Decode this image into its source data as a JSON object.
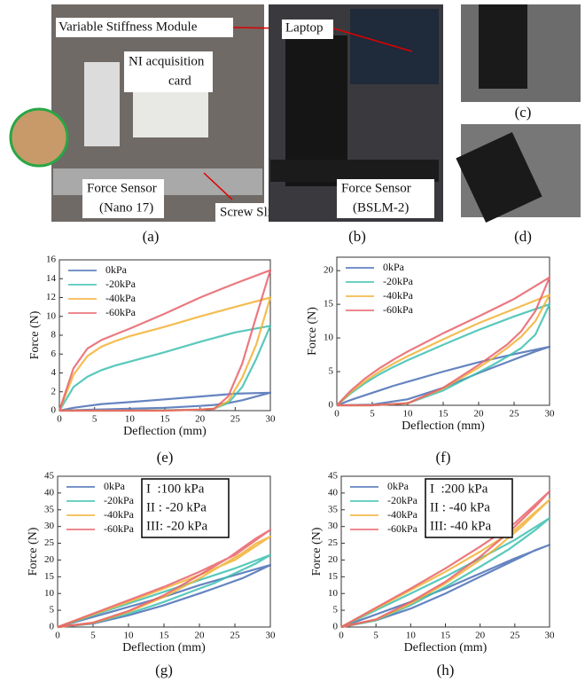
{
  "photos": [
    {
      "caption": "(a)",
      "labels": [
        "Variable Stiffness Module",
        "NI acquisition",
        "card",
        "Force Sensor",
        "(Nano 17)",
        "Screw Slide"
      ]
    },
    {
      "caption": "(b)",
      "labels": [
        "Laptop",
        "Force Sensor",
        "(BSLM-2)"
      ]
    },
    {
      "caption": "(c)"
    },
    {
      "caption": "(d)"
    }
  ],
  "chart_data": [
    {
      "type": "line",
      "caption": "(e)",
      "x_label": "Deflection (mm)",
      "y_label": "Force (N)",
      "legend": "upper left",
      "x": [
        0,
        2,
        4,
        6,
        8,
        10,
        15,
        20,
        25,
        30,
        28,
        26,
        24,
        22,
        20,
        15,
        10,
        5,
        0
      ],
      "xlim": [
        0,
        30
      ],
      "xticks": [
        0,
        5,
        10,
        15,
        20,
        25,
        30
      ],
      "ylim": [
        0,
        16
      ],
      "yticks": [
        0,
        2,
        4,
        6,
        8,
        10,
        12,
        14,
        16
      ],
      "series": [
        {
          "name": "0kPa",
          "color": "#4a6fb5",
          "values": [
            0,
            0.3,
            0.5,
            0.7,
            0.8,
            0.9,
            1.2,
            1.5,
            1.8,
            1.9,
            1.5,
            1.1,
            0.8,
            0.6,
            0.5,
            0.3,
            0.2,
            0.1,
            0
          ]
        },
        {
          "name": "-20kPa",
          "color": "#3cc0b0",
          "values": [
            0,
            2.5,
            3.6,
            4.3,
            4.8,
            5.2,
            6.2,
            7.3,
            8.3,
            9.0,
            5.5,
            2.5,
            0.8,
            0.2,
            0.1,
            0.05,
            0,
            0,
            0
          ]
        },
        {
          "name": "-40kPa",
          "color": "#f2b134",
          "values": [
            0,
            3.8,
            5.8,
            6.8,
            7.4,
            7.9,
            8.9,
            10.0,
            11.0,
            12.0,
            7,
            3.5,
            1.0,
            0.2,
            0.1,
            0,
            0,
            0,
            0
          ]
        },
        {
          "name": "-60kPa",
          "color": "#e8626a",
          "values": [
            0,
            4.5,
            6.6,
            7.5,
            8.1,
            8.7,
            10.3,
            12.0,
            13.5,
            14.9,
            10,
            5,
            1.5,
            0.2,
            0.1,
            0,
            0,
            0,
            0
          ]
        }
      ]
    },
    {
      "type": "line",
      "caption": "(f)",
      "x_label": "Deflection (mm)",
      "y_label": "Force (N)",
      "legend": "upper left",
      "x": [
        0,
        2,
        4,
        6,
        8,
        10,
        15,
        20,
        25,
        30,
        28,
        26,
        24,
        22,
        20,
        15,
        10,
        5,
        0
      ],
      "xlim": [
        0,
        30
      ],
      "xticks": [
        0,
        5,
        10,
        15,
        20,
        25,
        30
      ],
      "ylim": [
        0,
        22
      ],
      "yticks": [
        0,
        5,
        10,
        15,
        20
      ],
      "series": [
        {
          "name": "0kPa",
          "color": "#4a6fb5",
          "values": [
            0,
            0.8,
            1.5,
            2.2,
            2.9,
            3.5,
            5.0,
            6.4,
            7.6,
            8.7,
            8.0,
            7.2,
            6.4,
            5.6,
            4.8,
            2.6,
            0.9,
            0.1,
            0
          ]
        },
        {
          "name": "-20kPa",
          "color": "#3cc0b0",
          "values": [
            0,
            1.8,
            3.3,
            4.6,
            5.7,
            6.7,
            9.0,
            11.2,
            13.2,
            15.0,
            10.5,
            8.5,
            7.2,
            6.0,
            4.9,
            2.2,
            0.3,
            0,
            0
          ]
        },
        {
          "name": "-40kPa",
          "color": "#f2b134",
          "values": [
            0,
            2.0,
            3.6,
            5.0,
            6.2,
            7.3,
            9.8,
            12.2,
            14.3,
            16.4,
            12.5,
            10.2,
            8.5,
            7.0,
            5.6,
            2.5,
            0.3,
            0,
            0
          ]
        },
        {
          "name": "-60kPa",
          "color": "#e8626a",
          "values": [
            0,
            2.2,
            4.0,
            5.5,
            6.8,
            8.0,
            10.7,
            13.2,
            15.8,
            19.0,
            14,
            11,
            9,
            7.5,
            6.0,
            2.6,
            0.3,
            0,
            0
          ]
        }
      ]
    },
    {
      "type": "line",
      "caption": "(g)",
      "x_label": "Deflection (mm)",
      "y_label": "Force (N)",
      "legend": "upper left",
      "annotations": [
        "I  :100 kPa",
        "II : -20 kPa",
        "III: -20 kPa"
      ],
      "x": [
        0,
        2,
        4,
        6,
        8,
        10,
        15,
        20,
        25,
        30,
        28,
        26,
        24,
        22,
        20,
        15,
        10,
        5,
        0
      ],
      "xlim": [
        0,
        30
      ],
      "xticks": [
        0,
        5,
        10,
        15,
        20,
        25,
        30
      ],
      "ylim": [
        0,
        45
      ],
      "yticks": [
        0,
        5,
        10,
        15,
        20,
        25,
        30,
        35,
        40,
        45
      ],
      "series": [
        {
          "name": "0kPa",
          "color": "#4a6fb5",
          "values": [
            0,
            1.2,
            2.4,
            3.6,
            4.8,
            6.0,
            9.0,
            12.5,
            15.5,
            18.5,
            16.5,
            14.5,
            13,
            11.5,
            10,
            6.5,
            3.5,
            1,
            0
          ]
        },
        {
          "name": "-20kPa",
          "color": "#3cc0b0",
          "values": [
            0,
            1.4,
            2.8,
            4.2,
            5.6,
            7,
            10.5,
            14,
            17.5,
            21.5,
            19,
            17,
            15,
            13,
            11.5,
            7.5,
            4,
            1.2,
            0
          ]
        },
        {
          "name": "-40kPa",
          "color": "#f2b134",
          "values": [
            0,
            1.5,
            3.0,
            4.5,
            6,
            7.5,
            11.5,
            15.5,
            20,
            27,
            25,
            22,
            19.5,
            17,
            14.5,
            9,
            4.5,
            1.2,
            0
          ]
        },
        {
          "name": "-60kPa",
          "color": "#e8626a",
          "values": [
            0,
            1.6,
            3.2,
            4.8,
            6.4,
            8,
            12,
            16.5,
            21.5,
            29,
            26.5,
            23.5,
            20.5,
            18,
            15.5,
            9.5,
            4.8,
            1.3,
            0
          ]
        }
      ]
    },
    {
      "type": "line",
      "caption": "(h)",
      "x_label": "Deflection (mm)",
      "y_label": "Force (N)",
      "legend": "upper left",
      "annotations": [
        "I  :200 kPa",
        "II : -40 kPa",
        "III: -40 kPa"
      ],
      "x": [
        0,
        2,
        4,
        6,
        8,
        10,
        15,
        20,
        25,
        30,
        28,
        26,
        24,
        22,
        20,
        15,
        10,
        5,
        0
      ],
      "xlim": [
        0,
        30
      ],
      "xticks": [
        0,
        5,
        10,
        15,
        20,
        25,
        30
      ],
      "ylim": [
        0,
        45
      ],
      "yticks": [
        0,
        5,
        10,
        15,
        20,
        25,
        30,
        35,
        40,
        45
      ],
      "series": [
        {
          "name": "0kPa",
          "color": "#4a6fb5",
          "values": [
            0,
            1.5,
            3,
            4.5,
            6,
            7.5,
            11.5,
            16,
            20.5,
            24.5,
            23,
            21,
            19,
            17,
            15,
            10,
            5.5,
            2,
            0
          ]
        },
        {
          "name": "-20kPa",
          "color": "#3cc0b0",
          "values": [
            0,
            2,
            4,
            6,
            8,
            10,
            15,
            20.5,
            26,
            32.5,
            29,
            26,
            23,
            20.5,
            18,
            12,
            6.5,
            2,
            0
          ]
        },
        {
          "name": "-40kPa",
          "color": "#f2b134",
          "values": [
            0,
            2.2,
            4.4,
            6.6,
            8.8,
            11,
            16.5,
            22.5,
            29,
            38,
            34,
            30,
            26.5,
            23,
            20,
            13,
            7,
            2.2,
            0
          ]
        },
        {
          "name": "-60kPa",
          "color": "#e8626a",
          "values": [
            0,
            2.3,
            4.6,
            6.9,
            9.2,
            11.5,
            17.5,
            24,
            31,
            40.5,
            36,
            32,
            28,
            24.5,
            21,
            13.5,
            7.5,
            2.3,
            0
          ]
        }
      ]
    }
  ]
}
